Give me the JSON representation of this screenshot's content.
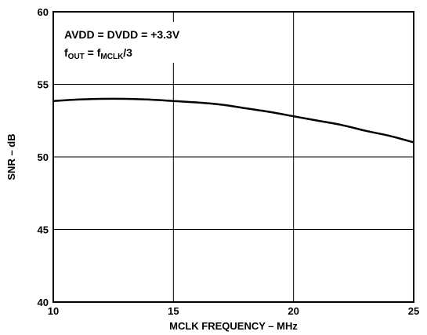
{
  "chart_data": {
    "type": "line",
    "title": "",
    "xlabel": "MCLK FREQUENCY – MHz",
    "ylabel": "SNR – dB",
    "xlim": [
      10,
      25
    ],
    "ylim": [
      40,
      60
    ],
    "x_ticks": [
      10,
      15,
      20,
      25
    ],
    "y_ticks": [
      40,
      45,
      50,
      55,
      60
    ],
    "grid": true,
    "legend": "none",
    "annotations": {
      "line1": "AVDD = DVDD = +3.3V",
      "line2": {
        "f": "f",
        "out_sub": "OUT",
        "eq": " = f",
        "mclk_sub": "MCLK",
        "tail": "/3"
      }
    },
    "series": [
      {
        "color": "#000000",
        "x": [
          10,
          11,
          12,
          13,
          14,
          15,
          16,
          17,
          18,
          19,
          20,
          21,
          22,
          23,
          24,
          25
        ],
        "y": [
          53.85,
          53.95,
          54.0,
          54.0,
          53.95,
          53.85,
          53.75,
          53.6,
          53.35,
          53.1,
          52.8,
          52.5,
          52.2,
          51.8,
          51.45,
          51.0
        ]
      }
    ]
  }
}
